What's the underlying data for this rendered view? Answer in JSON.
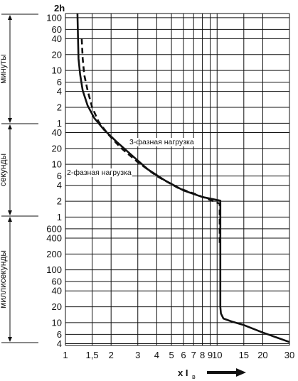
{
  "chart_data": {
    "type": "line",
    "title": "",
    "corner_label": "2h",
    "xlabel": "x I",
    "xlabel_subscript": "в",
    "x_scale": "log",
    "xlim": [
      1,
      30
    ],
    "x_ticks": [
      {
        "value": 1,
        "label": "1"
      },
      {
        "value": 1.5,
        "label": "1,5"
      },
      {
        "value": 2,
        "label": "2"
      },
      {
        "value": 3,
        "label": "3"
      },
      {
        "value": 4,
        "label": "4"
      },
      {
        "value": 5,
        "label": "5"
      },
      {
        "value": 6,
        "label": "6"
      },
      {
        "value": 7,
        "label": "7"
      },
      {
        "value": 8,
        "label": "8"
      },
      {
        "value": 9,
        "label": "9"
      },
      {
        "value": 10,
        "label": "10"
      },
      {
        "value": 15,
        "label": "15"
      },
      {
        "value": 20,
        "label": "20"
      },
      {
        "value": 30,
        "label": "30"
      }
    ],
    "y_scale": "log",
    "ylim_seconds": [
      0.0037,
      7200
    ],
    "y_bands": [
      {
        "label": "минуты",
        "ticks": [
          {
            "seconds": 6000,
            "label": "100"
          },
          {
            "seconds": 3600,
            "label": "60"
          },
          {
            "seconds": 2400,
            "label": "40"
          },
          {
            "seconds": 1200,
            "label": "20"
          },
          {
            "seconds": 600,
            "label": "10"
          },
          {
            "seconds": 360,
            "label": "6"
          },
          {
            "seconds": 240,
            "label": "4"
          },
          {
            "seconds": 120,
            "label": "2"
          },
          {
            "seconds": 60,
            "label": "1"
          }
        ]
      },
      {
        "label": "секунды",
        "ticks": [
          {
            "seconds": 40,
            "label": "40"
          },
          {
            "seconds": 20,
            "label": "20"
          },
          {
            "seconds": 10,
            "label": "10"
          },
          {
            "seconds": 6,
            "label": "6"
          },
          {
            "seconds": 4,
            "label": "4"
          },
          {
            "seconds": 2,
            "label": "2"
          },
          {
            "seconds": 1,
            "label": "1"
          }
        ]
      },
      {
        "label": "миллисекунды",
        "ticks": [
          {
            "seconds": 0.6,
            "label": "600"
          },
          {
            "seconds": 0.4,
            "label": "400"
          },
          {
            "seconds": 0.2,
            "label": "200"
          },
          {
            "seconds": 0.1,
            "label": "100"
          },
          {
            "seconds": 0.06,
            "label": "60"
          },
          {
            "seconds": 0.04,
            "label": "40"
          },
          {
            "seconds": 0.02,
            "label": "20"
          },
          {
            "seconds": 0.01,
            "label": "10"
          },
          {
            "seconds": 0.006,
            "label": "6"
          },
          {
            "seconds": 0.004,
            "label": "4"
          }
        ]
      }
    ],
    "series": [
      {
        "name": "3-фазная нагрузка",
        "style": "solid",
        "points": [
          [
            1.2,
            7200
          ],
          [
            1.21,
            2400
          ],
          [
            1.22,
            1000
          ],
          [
            1.25,
            500
          ],
          [
            1.3,
            250
          ],
          [
            1.4,
            130
          ],
          [
            1.55,
            75
          ],
          [
            1.8,
            45
          ],
          [
            2.2,
            26
          ],
          [
            2.8,
            14
          ],
          [
            3.5,
            8
          ],
          [
            4.5,
            5
          ],
          [
            6,
            3.2
          ],
          [
            8,
            2.4
          ],
          [
            10.5,
            2.05
          ],
          [
            10.5,
            0.02
          ],
          [
            10.6,
            0.015
          ],
          [
            11,
            0.012
          ],
          [
            12.5,
            0.0105
          ],
          [
            15,
            0.009
          ],
          [
            20,
            0.0065
          ],
          [
            30,
            0.0043
          ]
        ]
      },
      {
        "name": "2-фазная нагрузка",
        "style": "dashed",
        "points": [
          [
            1.28,
            2400
          ],
          [
            1.3,
            1000
          ],
          [
            1.33,
            500
          ],
          [
            1.4,
            250
          ],
          [
            1.5,
            120
          ],
          [
            1.65,
            65
          ],
          [
            1.9,
            38
          ],
          [
            2.3,
            21
          ],
          [
            3,
            11
          ],
          [
            4,
            6
          ],
          [
            5.5,
            3.6
          ],
          [
            7.5,
            2.6
          ],
          [
            10.4,
            1.8
          ],
          [
            10.4,
            0.3
          ]
        ]
      }
    ]
  }
}
